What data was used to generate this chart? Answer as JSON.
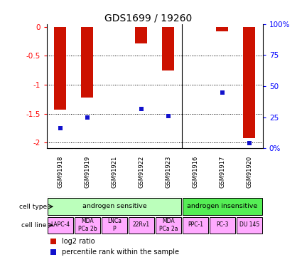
{
  "title": "GDS1699 / 19260",
  "samples": [
    "GSM91918",
    "GSM91919",
    "GSM91921",
    "GSM91922",
    "GSM91923",
    "GSM91916",
    "GSM91917",
    "GSM91920"
  ],
  "log2_ratio": [
    -1.43,
    -1.22,
    0.0,
    -0.28,
    -0.75,
    0.0,
    -0.08,
    -1.92
  ],
  "percentile_rank": [
    16,
    25,
    0,
    32,
    26,
    0,
    45,
    4
  ],
  "bar_color": "#cc1100",
  "dot_color": "#1111cc",
  "cell_types": [
    {
      "label": "androgen sensitive",
      "start": 0,
      "end": 5,
      "color": "#bbffbb"
    },
    {
      "label": "androgen insensitive",
      "start": 5,
      "end": 8,
      "color": "#55ee55"
    }
  ],
  "cell_lines": [
    {
      "label": "LAPC-4",
      "start": 0,
      "end": 1
    },
    {
      "label": "MDA\nPCa 2b",
      "start": 1,
      "end": 2
    },
    {
      "label": "LNCa\nP",
      "start": 2,
      "end": 3
    },
    {
      "label": "22Rv1",
      "start": 3,
      "end": 4
    },
    {
      "label": "MDA\nPCa 2a",
      "start": 4,
      "end": 5
    },
    {
      "label": "PPC-1",
      "start": 5,
      "end": 6
    },
    {
      "label": "PC-3",
      "start": 6,
      "end": 7
    },
    {
      "label": "DU 145",
      "start": 7,
      "end": 8
    }
  ],
  "cell_line_color": "#ffaaff",
  "ylim_left": [
    -2.1,
    0.05
  ],
  "ylim_right": [
    0,
    100
  ],
  "yticks_left": [
    0,
    -0.5,
    -1.0,
    -1.5,
    -2.0
  ],
  "yticks_right": [
    0,
    25,
    50,
    75,
    100
  ],
  "left_tick_labels": [
    "0",
    "-0.5",
    "-1",
    "-1.5",
    "-2"
  ],
  "right_tick_labels": [
    "0%",
    "25",
    "50",
    "75",
    "100%"
  ],
  "bg_color": "#ffffff",
  "bar_width": 0.45
}
